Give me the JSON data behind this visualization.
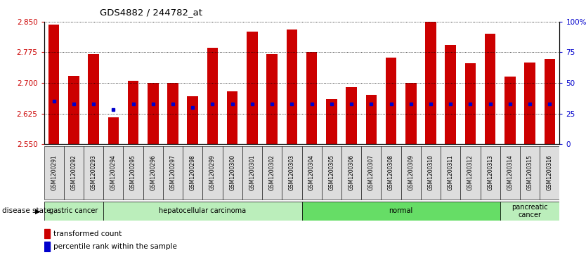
{
  "title": "GDS4882 / 244782_at",
  "samples": [
    "GSM1200291",
    "GSM1200292",
    "GSM1200293",
    "GSM1200294",
    "GSM1200295",
    "GSM1200296",
    "GSM1200297",
    "GSM1200298",
    "GSM1200299",
    "GSM1200300",
    "GSM1200301",
    "GSM1200302",
    "GSM1200303",
    "GSM1200304",
    "GSM1200305",
    "GSM1200306",
    "GSM1200307",
    "GSM1200308",
    "GSM1200309",
    "GSM1200310",
    "GSM1200311",
    "GSM1200312",
    "GSM1200313",
    "GSM1200314",
    "GSM1200315",
    "GSM1200316"
  ],
  "transformed_counts": [
    2.843,
    2.718,
    2.77,
    2.615,
    2.705,
    2.7,
    2.7,
    2.668,
    2.786,
    2.68,
    2.825,
    2.77,
    2.83,
    2.775,
    2.66,
    2.69,
    2.67,
    2.762,
    2.7,
    2.855,
    2.793,
    2.748,
    2.82,
    2.715,
    2.75,
    2.758
  ],
  "percentile_ranks": [
    35,
    33,
    33,
    28,
    33,
    33,
    33,
    30,
    33,
    33,
    33,
    33,
    33,
    33,
    33,
    33,
    33,
    33,
    33,
    33,
    33,
    33,
    33,
    33,
    33,
    33
  ],
  "ylim_left": [
    2.55,
    2.85
  ],
  "ylim_right": [
    0,
    100
  ],
  "yticks_left": [
    2.55,
    2.625,
    2.7,
    2.775,
    2.85
  ],
  "yticks_right": [
    0,
    25,
    50,
    75,
    100
  ],
  "bar_color": "#CC0000",
  "marker_color": "#0000CC",
  "disease_groups": [
    {
      "label": "gastric cancer",
      "start": 0,
      "end": 3,
      "color": "#bbeebb"
    },
    {
      "label": "hepatocellular carcinoma",
      "start": 3,
      "end": 13,
      "color": "#bbeebb"
    },
    {
      "label": "normal",
      "start": 13,
      "end": 23,
      "color": "#66dd66"
    },
    {
      "label": "pancreatic\ncancer",
      "start": 23,
      "end": 26,
      "color": "#bbeebb"
    }
  ]
}
